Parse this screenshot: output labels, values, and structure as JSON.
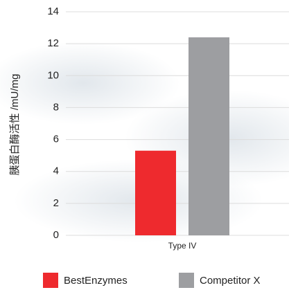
{
  "chart_data": {
    "type": "bar",
    "y_label": "胰蛋白酶活性 /mU/mg",
    "categories": [
      "Type IV"
    ],
    "series": [
      {
        "name": "BestEnzymes",
        "color": "#ee2a2e",
        "values": [
          5.3
        ]
      },
      {
        "name": "Competitor X",
        "color": "#9d9ea1",
        "values": [
          12.4
        ]
      }
    ],
    "ylim": [
      0,
      14
    ],
    "yticks": [
      0,
      2,
      4,
      6,
      8,
      10,
      12,
      14
    ],
    "grid": true,
    "legend": "bottom"
  }
}
